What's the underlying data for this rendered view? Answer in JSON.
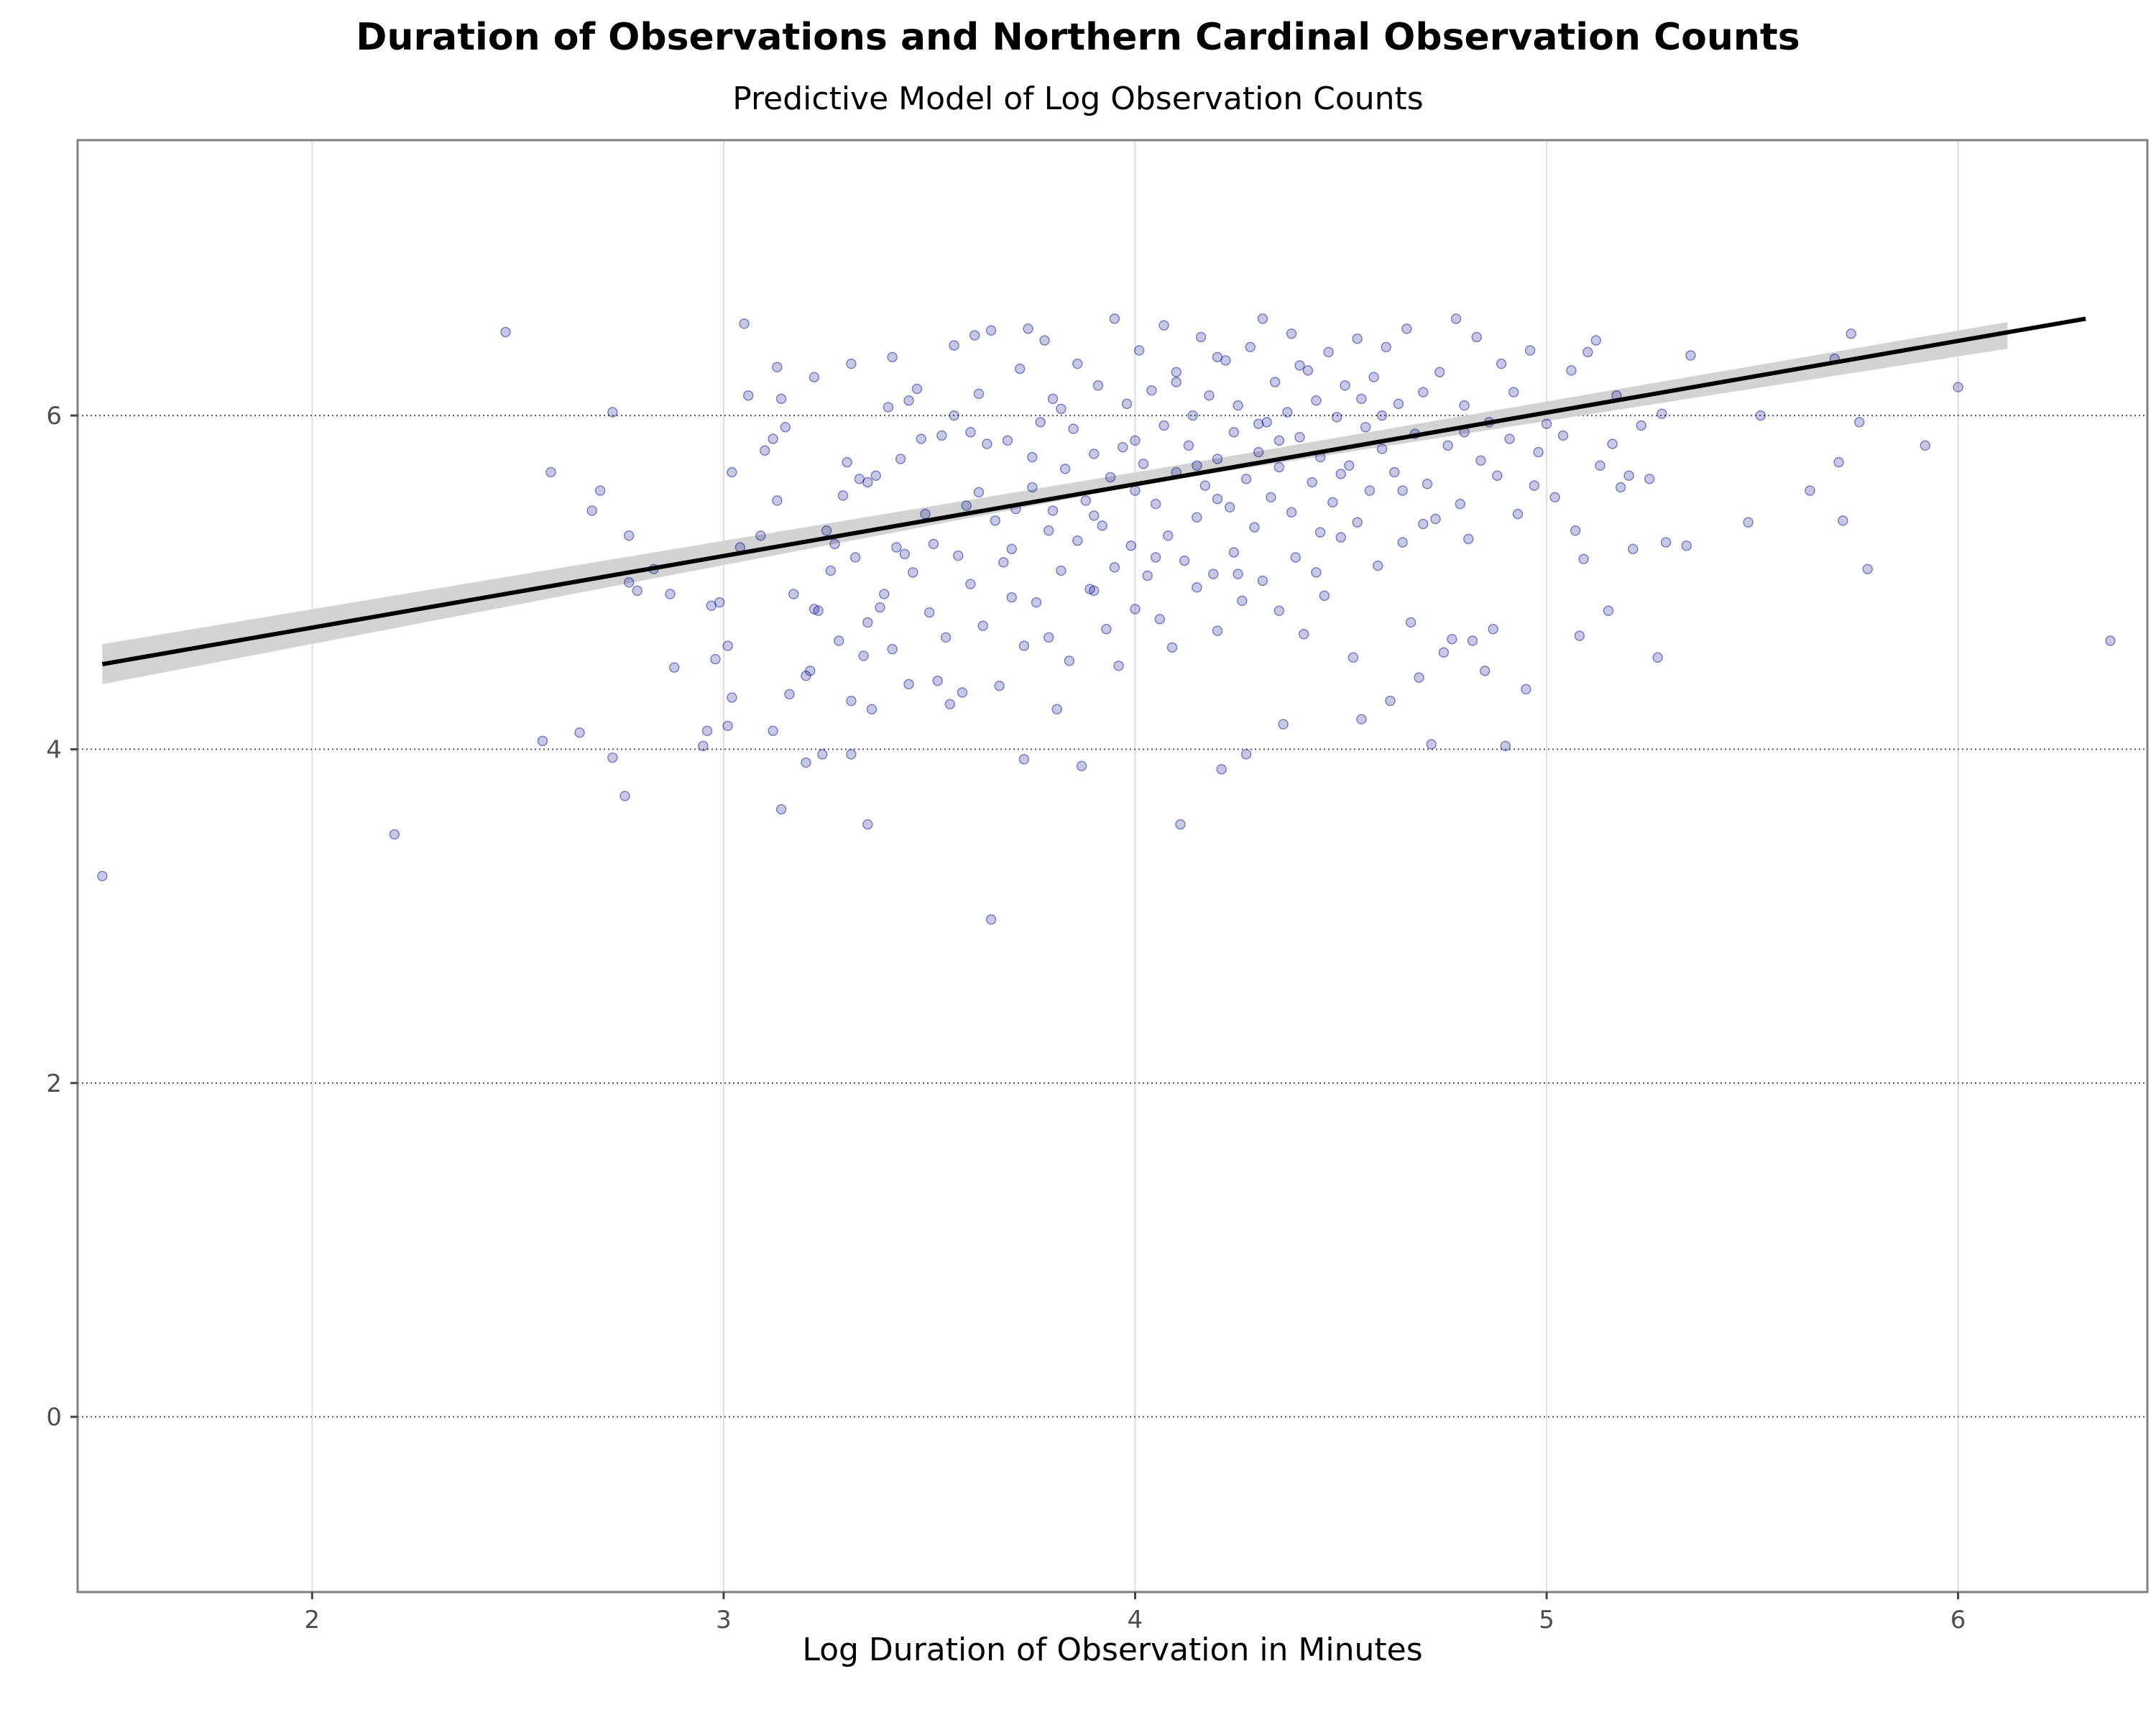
{
  "chart_data": {
    "type": "scatter",
    "title": "Duration of Observations and Northern Cardinal Observation Counts",
    "subtitle": "Predictive Model of Log Observation Counts",
    "xlabel": "Log Duration of Observation in Minutes",
    "ylabel": "",
    "xlim": [
      1.43,
      6.46
    ],
    "ylim": [
      -1.05,
      7.65
    ],
    "xticks": [
      2,
      3,
      4,
      5,
      6
    ],
    "yticks": [
      0,
      2,
      4,
      6
    ],
    "grid": {
      "x": "solid-light",
      "y": "dotted"
    },
    "point_color": "#00008B",
    "point_alpha": 0.22,
    "fit_line": {
      "x": [
        1.49,
        6.31
      ],
      "y": [
        4.51,
        6.58
      ],
      "color": "#000000"
    },
    "confidence_band": {
      "x": [
        1.49,
        4.05,
        6.12
      ],
      "upper": [
        4.63,
        5.68,
        6.56
      ],
      "lower": [
        4.39,
        5.6,
        6.4
      ],
      "color": "#d3d3d3"
    },
    "series": [
      {
        "name": "observations",
        "points": [
          [
            1.49,
            3.24
          ],
          [
            2.2,
            3.49
          ],
          [
            2.47,
            6.5
          ],
          [
            2.56,
            4.05
          ],
          [
            2.58,
            5.66
          ],
          [
            2.65,
            4.1
          ],
          [
            2.68,
            5.43
          ],
          [
            2.7,
            5.55
          ],
          [
            2.73,
            3.95
          ],
          [
            2.73,
            6.02
          ],
          [
            2.76,
            3.72
          ],
          [
            2.77,
            5.28
          ],
          [
            2.77,
            5.0
          ],
          [
            2.79,
            4.95
          ],
          [
            2.83,
            5.08
          ],
          [
            2.87,
            4.93
          ],
          [
            2.88,
            4.49
          ],
          [
            2.95,
            4.02
          ],
          [
            2.96,
            4.11
          ],
          [
            2.97,
            4.86
          ],
          [
            2.98,
            4.54
          ],
          [
            2.99,
            4.88
          ],
          [
            3.01,
            4.62
          ],
          [
            3.01,
            4.14
          ],
          [
            3.02,
            4.31
          ],
          [
            3.02,
            5.66
          ],
          [
            3.04,
            5.21
          ],
          [
            3.05,
            6.55
          ],
          [
            3.06,
            6.12
          ],
          [
            3.09,
            5.28
          ],
          [
            3.1,
            5.79
          ],
          [
            3.12,
            4.11
          ],
          [
            3.12,
            5.86
          ],
          [
            3.13,
            6.29
          ],
          [
            3.13,
            5.49
          ],
          [
            3.14,
            6.1
          ],
          [
            3.14,
            3.64
          ],
          [
            3.15,
            5.93
          ],
          [
            3.16,
            4.33
          ],
          [
            3.17,
            4.93
          ],
          [
            3.2,
            3.92
          ],
          [
            3.2,
            4.44
          ],
          [
            3.21,
            4.47
          ],
          [
            3.22,
            4.84
          ],
          [
            3.22,
            6.23
          ],
          [
            3.23,
            4.83
          ],
          [
            3.24,
            3.97
          ],
          [
            3.25,
            5.31
          ],
          [
            3.26,
            5.07
          ],
          [
            3.27,
            5.23
          ],
          [
            3.28,
            4.65
          ],
          [
            3.29,
            5.52
          ],
          [
            3.3,
            5.72
          ],
          [
            3.31,
            4.29
          ],
          [
            3.31,
            6.31
          ],
          [
            3.31,
            3.97
          ],
          [
            3.32,
            5.15
          ],
          [
            3.33,
            5.62
          ],
          [
            3.34,
            4.56
          ],
          [
            3.35,
            4.76
          ],
          [
            3.35,
            3.55
          ],
          [
            3.36,
            4.24
          ],
          [
            3.37,
            5.64
          ],
          [
            3.38,
            4.85
          ],
          [
            3.39,
            4.93
          ],
          [
            3.4,
            6.05
          ],
          [
            3.41,
            4.6
          ],
          [
            3.41,
            6.35
          ],
          [
            3.42,
            5.21
          ],
          [
            3.43,
            5.74
          ],
          [
            3.44,
            5.17
          ],
          [
            3.45,
            4.39
          ],
          [
            3.45,
            6.09
          ],
          [
            3.46,
            5.06
          ],
          [
            3.47,
            6.16
          ],
          [
            3.48,
            5.86
          ],
          [
            3.49,
            5.41
          ],
          [
            3.5,
            4.82
          ],
          [
            3.51,
            5.23
          ],
          [
            3.52,
            4.41
          ],
          [
            3.53,
            5.88
          ],
          [
            3.54,
            4.67
          ],
          [
            3.55,
            4.27
          ],
          [
            3.56,
            6.0
          ],
          [
            3.56,
            6.42
          ],
          [
            3.57,
            5.16
          ],
          [
            3.58,
            4.34
          ],
          [
            3.59,
            5.46
          ],
          [
            3.6,
            4.99
          ],
          [
            3.61,
            6.48
          ],
          [
            3.62,
            5.54
          ],
          [
            3.62,
            6.13
          ],
          [
            3.63,
            4.74
          ],
          [
            3.64,
            5.83
          ],
          [
            3.65,
            2.98
          ],
          [
            3.65,
            6.51
          ],
          [
            3.66,
            5.37
          ],
          [
            3.67,
            4.38
          ],
          [
            3.68,
            5.12
          ],
          [
            3.69,
            5.85
          ],
          [
            3.7,
            4.91
          ],
          [
            3.71,
            5.44
          ],
          [
            3.72,
            6.28
          ],
          [
            3.73,
            3.94
          ],
          [
            3.73,
            4.62
          ],
          [
            3.74,
            6.52
          ],
          [
            3.75,
            5.57
          ],
          [
            3.76,
            4.88
          ],
          [
            3.77,
            5.96
          ],
          [
            3.78,
            6.45
          ],
          [
            3.79,
            4.67
          ],
          [
            3.79,
            5.31
          ],
          [
            3.8,
            5.43
          ],
          [
            3.81,
            4.24
          ],
          [
            3.82,
            6.04
          ],
          [
            3.82,
            5.07
          ],
          [
            3.83,
            5.68
          ],
          [
            3.84,
            4.53
          ],
          [
            3.85,
            5.92
          ],
          [
            3.86,
            5.25
          ],
          [
            3.86,
            6.31
          ],
          [
            3.87,
            3.9
          ],
          [
            3.88,
            5.49
          ],
          [
            3.89,
            4.96
          ],
          [
            3.9,
            5.77
          ],
          [
            3.91,
            6.18
          ],
          [
            3.92,
            5.34
          ],
          [
            3.93,
            4.72
          ],
          [
            3.94,
            5.63
          ],
          [
            3.95,
            6.58
          ],
          [
            3.95,
            5.09
          ],
          [
            3.96,
            4.5
          ],
          [
            3.97,
            5.81
          ],
          [
            3.98,
            6.07
          ],
          [
            3.99,
            5.22
          ],
          [
            4.0,
            5.55
          ],
          [
            4.0,
            4.84
          ],
          [
            4.01,
            6.39
          ],
          [
            4.02,
            5.71
          ],
          [
            4.03,
            5.04
          ],
          [
            4.04,
            6.15
          ],
          [
            4.05,
            5.47
          ],
          [
            4.06,
            4.78
          ],
          [
            4.07,
            5.94
          ],
          [
            4.07,
            6.54
          ],
          [
            4.08,
            5.28
          ],
          [
            4.09,
            4.61
          ],
          [
            4.1,
            5.66
          ],
          [
            4.1,
            6.26
          ],
          [
            4.11,
            3.55
          ],
          [
            4.12,
            5.13
          ],
          [
            4.13,
            5.82
          ],
          [
            4.14,
            6.0
          ],
          [
            4.15,
            5.39
          ],
          [
            4.15,
            4.97
          ],
          [
            4.16,
            6.47
          ],
          [
            4.17,
            5.58
          ],
          [
            4.18,
            6.12
          ],
          [
            4.19,
            5.05
          ],
          [
            4.2,
            5.74
          ],
          [
            4.2,
            4.71
          ],
          [
            4.21,
            3.88
          ],
          [
            4.22,
            6.33
          ],
          [
            4.23,
            5.45
          ],
          [
            4.24,
            5.9
          ],
          [
            4.24,
            5.18
          ],
          [
            4.25,
            6.06
          ],
          [
            4.26,
            4.89
          ],
          [
            4.27,
            5.62
          ],
          [
            4.27,
            3.97
          ],
          [
            4.28,
            6.41
          ],
          [
            4.29,
            5.33
          ],
          [
            4.3,
            5.78
          ],
          [
            4.31,
            6.58
          ],
          [
            4.31,
            5.01
          ],
          [
            4.32,
            5.96
          ],
          [
            4.33,
            5.51
          ],
          [
            4.34,
            6.2
          ],
          [
            4.35,
            4.83
          ],
          [
            4.35,
            5.69
          ],
          [
            4.36,
            4.15
          ],
          [
            4.37,
            6.02
          ],
          [
            4.38,
            5.42
          ],
          [
            4.38,
            6.49
          ],
          [
            4.39,
            5.15
          ],
          [
            4.4,
            5.87
          ],
          [
            4.41,
            4.69
          ],
          [
            4.42,
            6.27
          ],
          [
            4.43,
            5.6
          ],
          [
            4.44,
            5.06
          ],
          [
            4.44,
            6.09
          ],
          [
            4.45,
            5.75
          ],
          [
            4.46,
            4.92
          ],
          [
            4.47,
            6.38
          ],
          [
            4.48,
            5.48
          ],
          [
            4.49,
            5.99
          ],
          [
            4.5,
            5.27
          ],
          [
            4.51,
            6.18
          ],
          [
            4.52,
            5.7
          ],
          [
            4.53,
            4.55
          ],
          [
            4.54,
            6.46
          ],
          [
            4.54,
            5.36
          ],
          [
            4.55,
            4.18
          ],
          [
            4.56,
            5.93
          ],
          [
            4.57,
            5.55
          ],
          [
            4.58,
            6.23
          ],
          [
            4.59,
            5.1
          ],
          [
            4.6,
            5.8
          ],
          [
            4.61,
            6.41
          ],
          [
            4.62,
            4.29
          ],
          [
            4.63,
            5.66
          ],
          [
            4.64,
            6.07
          ],
          [
            4.65,
            5.24
          ],
          [
            4.66,
            6.52
          ],
          [
            4.67,
            4.76
          ],
          [
            4.68,
            5.89
          ],
          [
            4.69,
            4.43
          ],
          [
            4.7,
            6.14
          ],
          [
            4.71,
            5.59
          ],
          [
            4.72,
            4.03
          ],
          [
            4.73,
            5.38
          ],
          [
            4.74,
            6.26
          ],
          [
            4.75,
            4.58
          ],
          [
            4.76,
            5.82
          ],
          [
            4.77,
            4.66
          ],
          [
            4.78,
            6.58
          ],
          [
            4.79,
            5.47
          ],
          [
            4.8,
            6.06
          ],
          [
            4.81,
            5.26
          ],
          [
            4.82,
            4.65
          ],
          [
            4.83,
            6.47
          ],
          [
            4.84,
            5.73
          ],
          [
            4.85,
            4.47
          ],
          [
            4.86,
            5.96
          ],
          [
            4.87,
            4.72
          ],
          [
            4.88,
            5.64
          ],
          [
            4.89,
            6.31
          ],
          [
            4.9,
            4.02
          ],
          [
            4.91,
            5.86
          ],
          [
            4.92,
            6.14
          ],
          [
            4.93,
            5.41
          ],
          [
            4.95,
            4.36
          ],
          [
            4.96,
            6.39
          ],
          [
            4.97,
            5.58
          ],
          [
            4.98,
            5.78
          ],
          [
            5.0,
            5.95
          ],
          [
            5.02,
            5.51
          ],
          [
            5.04,
            5.88
          ],
          [
            5.06,
            6.27
          ],
          [
            5.07,
            5.31
          ],
          [
            5.08,
            4.68
          ],
          [
            5.09,
            5.14
          ],
          [
            5.1,
            6.38
          ],
          [
            5.12,
            6.45
          ],
          [
            5.13,
            5.7
          ],
          [
            5.15,
            4.83
          ],
          [
            5.16,
            5.83
          ],
          [
            5.17,
            6.12
          ],
          [
            5.18,
            5.57
          ],
          [
            5.2,
            5.64
          ],
          [
            5.21,
            5.2
          ],
          [
            5.23,
            5.94
          ],
          [
            5.25,
            5.62
          ],
          [
            5.27,
            4.55
          ],
          [
            5.28,
            6.01
          ],
          [
            5.29,
            5.24
          ],
          [
            5.34,
            5.22
          ],
          [
            5.35,
            6.36
          ],
          [
            5.49,
            5.36
          ],
          [
            5.52,
            6.0
          ],
          [
            5.64,
            5.55
          ],
          [
            5.7,
            6.34
          ],
          [
            5.71,
            5.72
          ],
          [
            5.72,
            5.37
          ],
          [
            5.74,
            6.49
          ],
          [
            5.76,
            5.96
          ],
          [
            5.78,
            5.08
          ],
          [
            5.92,
            5.82
          ],
          [
            6.0,
            6.17
          ],
          [
            6.37,
            4.65
          ],
          [
            3.35,
            5.6
          ],
          [
            3.6,
            5.9
          ],
          [
            3.7,
            5.2
          ],
          [
            3.8,
            6.1
          ],
          [
            3.9,
            5.4
          ],
          [
            4.0,
            5.85
          ],
          [
            4.1,
            6.2
          ],
          [
            4.2,
            5.5
          ],
          [
            4.3,
            5.95
          ],
          [
            4.4,
            6.3
          ],
          [
            4.5,
            5.65
          ],
          [
            4.6,
            6.0
          ],
          [
            4.7,
            5.35
          ],
          [
            4.8,
            5.9
          ],
          [
            3.9,
            4.95
          ],
          [
            4.2,
            6.35
          ],
          [
            4.45,
            5.3
          ],
          [
            4.05,
            5.15
          ],
          [
            4.35,
            5.85
          ],
          [
            4.55,
            6.1
          ],
          [
            3.75,
            5.75
          ],
          [
            4.15,
            5.7
          ],
          [
            4.25,
            5.05
          ],
          [
            4.65,
            5.55
          ]
        ]
      }
    ]
  }
}
